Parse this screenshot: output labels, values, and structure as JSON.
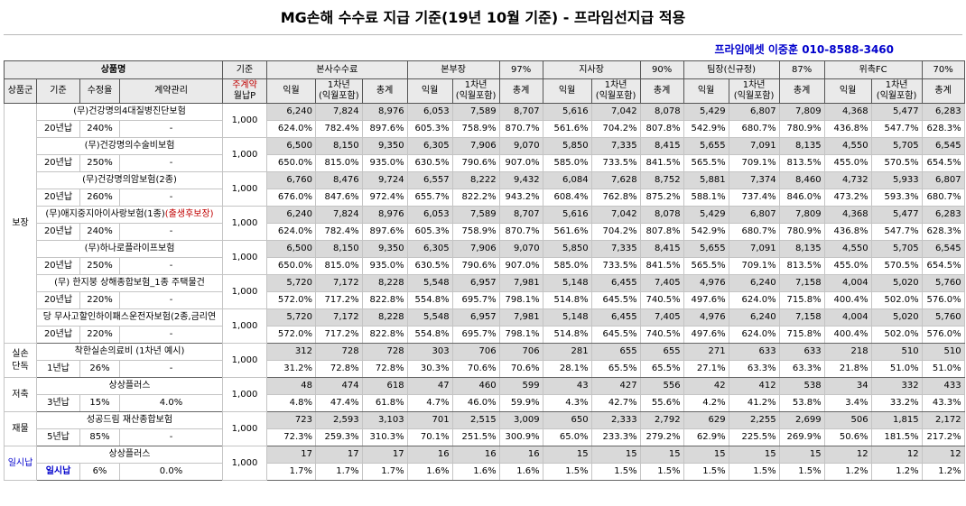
{
  "title": "MG손해 수수료 지급 기준(19년 10월 기준) - 프라임선지급 적용",
  "contact": "프라임에셋 이중훈 010-8588-3460",
  "header": {
    "product": "상품명",
    "basis": "기준",
    "hq": "본사수수료",
    "bonbu": "본부장",
    "bonbu_pct": "97%",
    "jisa": "지사장",
    "jisa_pct": "90%",
    "team": "팀장(신규정)",
    "team_pct": "87%",
    "fc": "위촉FC",
    "fc_pct": "70%",
    "group": "상품군",
    "std": "기준",
    "rate": "수정율",
    "contract_mgmt": "계약관리",
    "monthly_p_line1": "주계약",
    "monthly_p_line2": "월납P",
    "ikwol": "익월",
    "y1_line1": "1차년",
    "y1_line2": "(익월포함)",
    "total": "총계"
  },
  "groups": [
    {
      "label": "보장",
      "products": [
        {
          "name": "(무)건강명의4대질병진단보험",
          "name_red": "",
          "std": "20년납",
          "rate": "240%",
          "mgmt": "-",
          "base": "1,000",
          "amounts": [
            "6,240",
            "7,824",
            "8,976",
            "6,053",
            "7,589",
            "8,707",
            "5,616",
            "7,042",
            "8,078",
            "5,429",
            "6,807",
            "7,809",
            "4,368",
            "5,477",
            "6,283"
          ],
          "pcts": [
            "624.0%",
            "782.4%",
            "897.6%",
            "605.3%",
            "758.9%",
            "870.7%",
            "561.6%",
            "704.2%",
            "807.8%",
            "542.9%",
            "680.7%",
            "780.9%",
            "436.8%",
            "547.7%",
            "628.3%"
          ]
        },
        {
          "name": "(무)건강명의수술비보험",
          "name_red": "",
          "std": "20년납",
          "rate": "250%",
          "mgmt": "-",
          "base": "1,000",
          "amounts": [
            "6,500",
            "8,150",
            "9,350",
            "6,305",
            "7,906",
            "9,070",
            "5,850",
            "7,335",
            "8,415",
            "5,655",
            "7,091",
            "8,135",
            "4,550",
            "5,705",
            "6,545"
          ],
          "pcts": [
            "650.0%",
            "815.0%",
            "935.0%",
            "630.5%",
            "790.6%",
            "907.0%",
            "585.0%",
            "733.5%",
            "841.5%",
            "565.5%",
            "709.1%",
            "813.5%",
            "455.0%",
            "570.5%",
            "654.5%"
          ]
        },
        {
          "name": "(무)건강명의암보험(2종)",
          "name_red": "",
          "std": "20년납",
          "rate": "260%",
          "mgmt": "-",
          "base": "1,000",
          "amounts": [
            "6,760",
            "8,476",
            "9,724",
            "6,557",
            "8,222",
            "9,432",
            "6,084",
            "7,628",
            "8,752",
            "5,881",
            "7,374",
            "8,460",
            "4,732",
            "5,933",
            "6,807"
          ],
          "pcts": [
            "676.0%",
            "847.6%",
            "972.4%",
            "655.7%",
            "822.2%",
            "943.2%",
            "608.4%",
            "762.8%",
            "875.2%",
            "588.1%",
            "737.4%",
            "846.0%",
            "473.2%",
            "593.3%",
            "680.7%"
          ]
        },
        {
          "name": "(무)애지중지아이사랑보험(1종)",
          "name_red": "(출생후보장)",
          "std": "20년납",
          "rate": "240%",
          "mgmt": "-",
          "base": "1,000",
          "amounts": [
            "6,240",
            "7,824",
            "8,976",
            "6,053",
            "7,589",
            "8,707",
            "5,616",
            "7,042",
            "8,078",
            "5,429",
            "6,807",
            "7,809",
            "4,368",
            "5,477",
            "6,283"
          ],
          "pcts": [
            "624.0%",
            "782.4%",
            "897.6%",
            "605.3%",
            "758.9%",
            "870.7%",
            "561.6%",
            "704.2%",
            "807.8%",
            "542.9%",
            "680.7%",
            "780.9%",
            "436.8%",
            "547.7%",
            "628.3%"
          ]
        },
        {
          "name": "(무)하나로플라이프보험",
          "name_red": "",
          "std": "20년납",
          "rate": "250%",
          "mgmt": "-",
          "base": "1,000",
          "amounts": [
            "6,500",
            "8,150",
            "9,350",
            "6,305",
            "7,906",
            "9,070",
            "5,850",
            "7,335",
            "8,415",
            "5,655",
            "7,091",
            "8,135",
            "4,550",
            "5,705",
            "6,545"
          ],
          "pcts": [
            "650.0%",
            "815.0%",
            "935.0%",
            "630.5%",
            "790.6%",
            "907.0%",
            "585.0%",
            "733.5%",
            "841.5%",
            "565.5%",
            "709.1%",
            "813.5%",
            "455.0%",
            "570.5%",
            "654.5%"
          ]
        },
        {
          "name": "(무) 한지붕 상해종합보험_1종 주택물건",
          "name_red": "",
          "std": "20년납",
          "rate": "220%",
          "mgmt": "-",
          "base": "1,000",
          "amounts": [
            "5,720",
            "7,172",
            "8,228",
            "5,548",
            "6,957",
            "7,981",
            "5,148",
            "6,455",
            "7,405",
            "4,976",
            "6,240",
            "7,158",
            "4,004",
            "5,020",
            "5,760"
          ],
          "pcts": [
            "572.0%",
            "717.2%",
            "822.8%",
            "554.8%",
            "695.7%",
            "798.1%",
            "514.8%",
            "645.5%",
            "740.5%",
            "497.6%",
            "624.0%",
            "715.8%",
            "400.4%",
            "502.0%",
            "576.0%"
          ]
        },
        {
          "name": "당 무사고할인하이패스운전자보험(2종,금리연",
          "name_red": "",
          "std": "20년납",
          "rate": "220%",
          "mgmt": "-",
          "base": "1,000",
          "amounts": [
            "5,720",
            "7,172",
            "8,228",
            "5,548",
            "6,957",
            "7,981",
            "5,148",
            "6,455",
            "7,405",
            "4,976",
            "6,240",
            "7,158",
            "4,004",
            "5,020",
            "5,760"
          ],
          "pcts": [
            "572.0%",
            "717.2%",
            "822.8%",
            "554.8%",
            "695.7%",
            "798.1%",
            "514.8%",
            "645.5%",
            "740.5%",
            "497.6%",
            "624.0%",
            "715.8%",
            "400.4%",
            "502.0%",
            "576.0%"
          ]
        }
      ]
    },
    {
      "label_line1": "실손",
      "label_line2": "단독",
      "products": [
        {
          "name": "착한실손의료비 (1차년 예시)",
          "name_red": "",
          "std": "1년납",
          "rate": "26%",
          "mgmt": "-",
          "base": "1,000",
          "amounts": [
            "312",
            "728",
            "728",
            "303",
            "706",
            "706",
            "281",
            "655",
            "655",
            "271",
            "633",
            "633",
            "218",
            "510",
            "510"
          ],
          "pcts": [
            "31.2%",
            "72.8%",
            "72.8%",
            "30.3%",
            "70.6%",
            "70.6%",
            "28.1%",
            "65.5%",
            "65.5%",
            "27.1%",
            "63.3%",
            "63.3%",
            "21.8%",
            "51.0%",
            "51.0%"
          ]
        }
      ]
    },
    {
      "label": "저축",
      "products": [
        {
          "name": "상상플러스",
          "name_red": "",
          "std": "3년납",
          "rate": "15%",
          "mgmt": "4.0%",
          "base": "1,000",
          "amounts": [
            "48",
            "474",
            "618",
            "47",
            "460",
            "599",
            "43",
            "427",
            "556",
            "42",
            "412",
            "538",
            "34",
            "332",
            "433"
          ],
          "pcts": [
            "4.8%",
            "47.4%",
            "61.8%",
            "4.7%",
            "46.0%",
            "59.9%",
            "4.3%",
            "42.7%",
            "55.6%",
            "4.2%",
            "41.2%",
            "53.8%",
            "3.4%",
            "33.2%",
            "43.3%"
          ]
        }
      ]
    },
    {
      "label": "재물",
      "products": [
        {
          "name": "성공드림 재산종합보험",
          "name_red": "",
          "std": "5년납",
          "rate": "85%",
          "mgmt": "-",
          "base": "1,000",
          "amounts": [
            "723",
            "2,593",
            "3,103",
            "701",
            "2,515",
            "3,009",
            "650",
            "2,333",
            "2,792",
            "629",
            "2,255",
            "2,699",
            "506",
            "1,815",
            "2,172"
          ],
          "pcts": [
            "72.3%",
            "259.3%",
            "310.3%",
            "70.1%",
            "251.5%",
            "300.9%",
            "65.0%",
            "233.3%",
            "279.2%",
            "62.9%",
            "225.5%",
            "269.9%",
            "50.6%",
            "181.5%",
            "217.2%"
          ]
        }
      ]
    },
    {
      "label": "일시납",
      "products": [
        {
          "name": "상상플러스",
          "name_red": "",
          "std": "일시납",
          "rate": "6%",
          "mgmt": "0.0%",
          "base": "1,000",
          "amounts": [
            "17",
            "17",
            "17",
            "16",
            "16",
            "16",
            "15",
            "15",
            "15",
            "15",
            "15",
            "15",
            "12",
            "12",
            "12"
          ],
          "pcts": [
            "1.7%",
            "1.7%",
            "1.7%",
            "1.6%",
            "1.6%",
            "1.6%",
            "1.5%",
            "1.5%",
            "1.5%",
            "1.5%",
            "1.5%",
            "1.5%",
            "1.2%",
            "1.2%",
            "1.2%"
          ]
        }
      ]
    }
  ]
}
